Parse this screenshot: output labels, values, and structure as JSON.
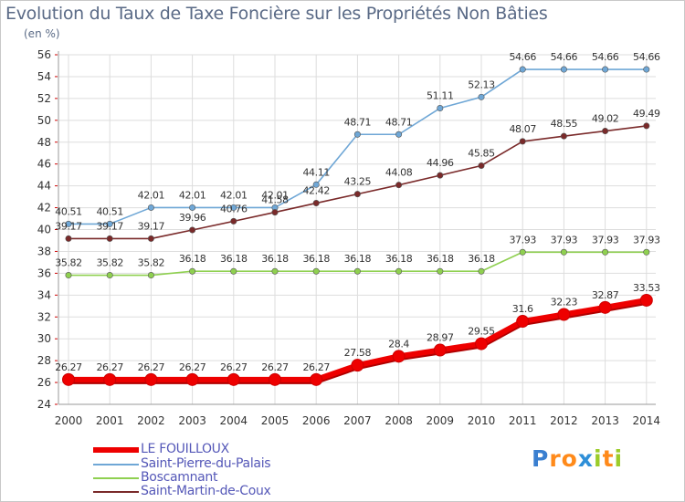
{
  "title": "Evolution du Taux de Taxe Foncière sur les Propriétés Non Bâties",
  "subtitle": "(en %)",
  "logo_text": "Proxiti",
  "colors": {
    "le_fouilloux": "#ee0000",
    "saint_pierre": "#6fa7d6",
    "boscamnant": "#8fd050",
    "saint_martin": "#7a2a2a",
    "axis_text": "#333333",
    "grid": "#dddddd",
    "tick_red": "#cc0000",
    "legend_text": "#5558b8"
  },
  "chart_data": {
    "type": "line",
    "title": "Evolution du Taux de Taxe Foncière sur les Propriétés Non Bâties",
    "ylabel": "(en %)",
    "x": [
      "2000",
      "2001",
      "2002",
      "2003",
      "2004",
      "2005",
      "2006",
      "2007",
      "2008",
      "2009",
      "2010",
      "2011",
      "2012",
      "2013",
      "2014"
    ],
    "ylim": [
      24,
      56
    ],
    "yticks": [
      24,
      26,
      28,
      30,
      32,
      34,
      36,
      38,
      40,
      42,
      44,
      46,
      48,
      50,
      52,
      54,
      56
    ],
    "grid": true,
    "legend_position": "bottom-left",
    "series": [
      {
        "key": "le_fouilloux",
        "name": "LE FOUILLOUX",
        "values": [
          26.27,
          26.27,
          26.27,
          26.27,
          26.27,
          26.27,
          26.27,
          27.58,
          28.4,
          28.97,
          29.55,
          31.6,
          32.23,
          32.87,
          33.53
        ],
        "labels": [
          "26.27",
          "26.27",
          "26.27",
          "26.27",
          "26.27",
          "26.27",
          "26.27",
          "27.58",
          "28.4",
          "28.97",
          "29.55",
          "31.6",
          "32.23",
          "32.87",
          "33.53"
        ]
      },
      {
        "key": "saint_pierre",
        "name": "Saint-Pierre-du-Palais",
        "values": [
          40.51,
          40.51,
          42.01,
          42.01,
          42.01,
          42.01,
          44.11,
          48.71,
          48.71,
          51.11,
          52.13,
          54.66,
          54.66,
          54.66,
          54.66
        ],
        "labels": [
          "40.51",
          "40.51",
          "42.01",
          "42.01",
          "42.01",
          "42.01",
          "44.11",
          "48.71",
          "48.71",
          "51.11",
          "52.13",
          "54.66",
          "54.66",
          "54.66",
          "54.66"
        ]
      },
      {
        "key": "boscamnant",
        "name": "Boscamnant",
        "values": [
          35.82,
          35.82,
          35.82,
          36.18,
          36.18,
          36.18,
          36.18,
          36.18,
          36.18,
          36.18,
          36.18,
          37.93,
          37.93,
          37.93,
          37.93
        ],
        "labels": [
          "35.82",
          "35.82",
          "35.82",
          "36.18",
          "36.18",
          "36.18",
          "36.18",
          "36.18",
          "36.18",
          "36.18",
          "36.18",
          "37.93",
          "37.93",
          "37.93",
          "37.93"
        ]
      },
      {
        "key": "saint_martin",
        "name": "Saint-Martin-de-Coux",
        "values": [
          39.17,
          39.17,
          39.17,
          39.96,
          40.76,
          41.58,
          42.42,
          43.25,
          44.08,
          44.96,
          45.85,
          48.07,
          48.55,
          49.02,
          49.49
        ],
        "labels": [
          "39.17",
          "39.17",
          "39.17",
          "39.96",
          "40.76",
          "41.58",
          "42.42",
          "43.25",
          "44.08",
          "44.96",
          "45.85",
          "48.07",
          "48.55",
          "49.02",
          "49.49"
        ]
      }
    ]
  }
}
